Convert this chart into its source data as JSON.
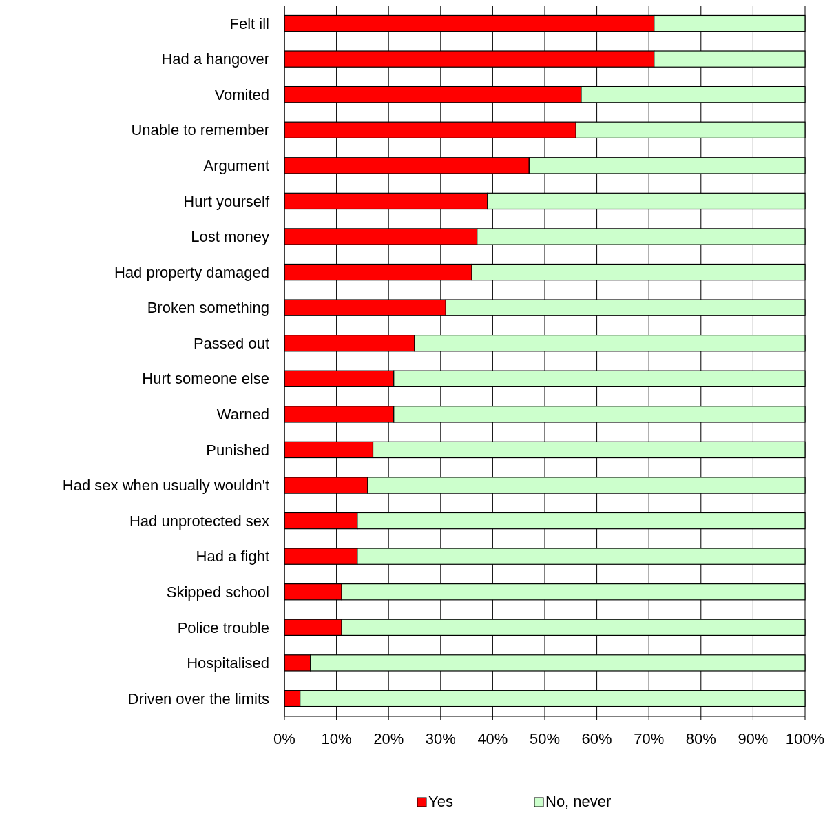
{
  "chart_data": {
    "type": "bar",
    "orientation": "horizontal",
    "stacked": true,
    "categories": [
      "Felt ill",
      "Had a hangover",
      "Vomited",
      "Unable to remember",
      "Argument",
      "Hurt yourself",
      "Lost money",
      "Had property damaged",
      "Broken something",
      "Passed out",
      "Hurt someone else",
      "Warned",
      "Punished",
      "Had sex when usually wouldn't",
      "Had unprotected sex",
      "Had a fight",
      "Skipped school",
      "Police trouble",
      "Hospitalised",
      "Driven over the limits"
    ],
    "series": [
      {
        "name": "Yes",
        "color": "#ff0000",
        "values": [
          71,
          71,
          57,
          56,
          47,
          39,
          37,
          36,
          31,
          25,
          21,
          21,
          17,
          16,
          14,
          14,
          11,
          11,
          5,
          3
        ]
      },
      {
        "name": "No, never",
        "color": "#ccffcc",
        "values": [
          29,
          29,
          43,
          44,
          53,
          61,
          63,
          64,
          69,
          75,
          79,
          79,
          83,
          84,
          86,
          86,
          89,
          89,
          95,
          97
        ]
      }
    ],
    "xlim": [
      0,
      100
    ],
    "xticks": [
      {
        "value": 0,
        "label": "0%"
      },
      {
        "value": 10,
        "label": "10%"
      },
      {
        "value": 20,
        "label": "20%"
      },
      {
        "value": 30,
        "label": "30%"
      },
      {
        "value": 40,
        "label": "40%"
      },
      {
        "value": 50,
        "label": "50%"
      },
      {
        "value": 60,
        "label": "60%"
      },
      {
        "value": 70,
        "label": "70%"
      },
      {
        "value": 80,
        "label": "80%"
      },
      {
        "value": 90,
        "label": "90%"
      },
      {
        "value": 100,
        "label": "100%"
      }
    ],
    "grid": "x",
    "legend": "bottom"
  }
}
